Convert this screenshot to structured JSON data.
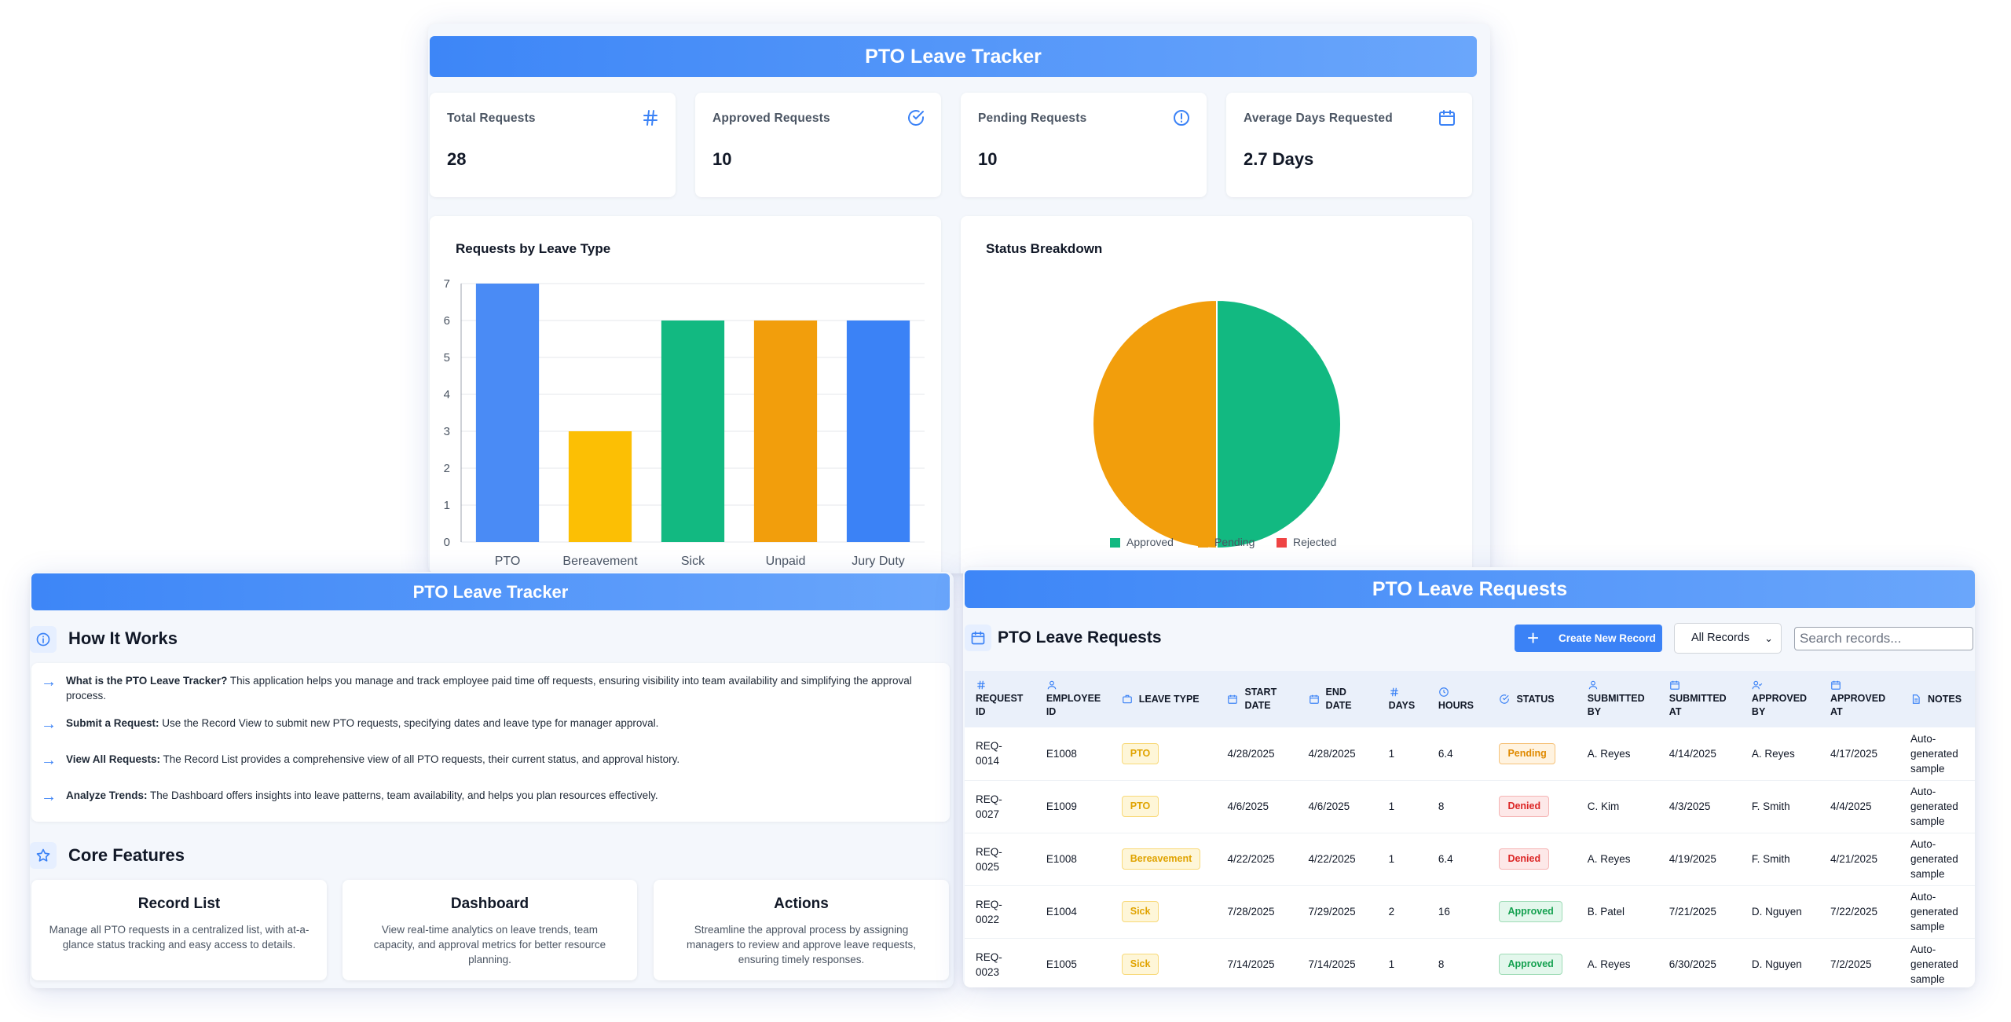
{
  "dashboard": {
    "title": "PTO Leave Tracker",
    "stats": [
      {
        "label": "Total Requests",
        "value": "28",
        "icon": "hash-icon"
      },
      {
        "label": "Approved Requests",
        "value": "10",
        "icon": "check-circle-icon"
      },
      {
        "label": "Pending Requests",
        "value": "10",
        "icon": "alert-circle-icon"
      },
      {
        "label": "Average Days Requested",
        "value": "2.7 Days",
        "icon": "calendar-icon"
      }
    ],
    "bar_title": "Requests by Leave Type",
    "pie_title": "Status Breakdown"
  },
  "chart_data": [
    {
      "type": "bar",
      "title": "Requests by Leave Type",
      "categories": [
        "PTO",
        "Bereavement",
        "Sick",
        "Unpaid",
        "Jury Duty"
      ],
      "values": [
        7,
        3,
        6,
        6,
        6
      ],
      "colors": [
        "#4a8bf5",
        "#fcbf04",
        "#12b981",
        "#f29e0c",
        "#3b82f6"
      ],
      "ylim": [
        0,
        7
      ],
      "yticks": [
        "0",
        "1",
        "2",
        "3",
        "4",
        "5",
        "6",
        "7"
      ],
      "grid": true
    },
    {
      "type": "pie",
      "title": "Status Breakdown",
      "labels": [
        "Approved",
        "Pending",
        "Rejected"
      ],
      "values": [
        10,
        10,
        0
      ],
      "colors": [
        "#12b981",
        "#f29e0c",
        "#ef4444"
      ],
      "legend": "bottom"
    }
  ],
  "how": {
    "title": "PTO Leave Tracker",
    "section_title": "How It Works",
    "items": [
      {
        "bold": "What is the PTO Leave Tracker?",
        "text": " This application helps you manage and track employee paid time off requests, ensuring visibility into team availability and simplifying the approval process."
      },
      {
        "bold": "Submit a Request:",
        "text": " Use the Record View to submit new PTO requests, specifying dates and leave type for manager approval."
      },
      {
        "bold": "View All Requests:",
        "text": " The Record List provides a comprehensive view of all PTO requests, their current status, and approval history."
      },
      {
        "bold": "Analyze Trends:",
        "text": " The Dashboard offers insights into leave patterns, team availability, and helps you plan resources effectively."
      }
    ],
    "features_title": "Core Features",
    "features": [
      {
        "title": "Record List",
        "desc": "Manage all PTO requests in a centralized list, with at-a-glance status tracking and easy access to details."
      },
      {
        "title": "Dashboard",
        "desc": "View real-time analytics on leave trends, team capacity, and approval metrics for better resource planning."
      },
      {
        "title": "Actions",
        "desc": "Streamline the approval process by assigning managers to review and approve leave requests, ensuring timely responses."
      }
    ]
  },
  "requests": {
    "header": "PTO Leave Requests",
    "title": "PTO Leave Requests",
    "new_button": "Create New Record",
    "filter_value": "All Records",
    "search_placeholder": "Search records...",
    "columns": [
      "REQUEST ID",
      "EMPLOYEE ID",
      "LEAVE TYPE",
      "START DATE",
      "END DATE",
      "DAYS",
      "HOURS",
      "STATUS",
      "SUBMITTED BY",
      "SUBMITTED AT",
      "APPROVED BY",
      "APPROVED AT",
      "NOTES"
    ],
    "rows": [
      [
        "REQ-0014",
        "E1008",
        "PTO",
        "4/28/2025",
        "4/28/2025",
        "1",
        "6.4",
        "Pending",
        "A. Reyes",
        "4/14/2025",
        "A. Reyes",
        "4/17/2025",
        "Auto-generated sample"
      ],
      [
        "REQ-0027",
        "E1009",
        "PTO",
        "4/6/2025",
        "4/6/2025",
        "1",
        "8",
        "Denied",
        "C. Kim",
        "4/3/2025",
        "F. Smith",
        "4/4/2025",
        "Auto-generated sample"
      ],
      [
        "REQ-0025",
        "E1008",
        "Bereavement",
        "4/22/2025",
        "4/22/2025",
        "1",
        "6.4",
        "Denied",
        "A. Reyes",
        "4/19/2025",
        "F. Smith",
        "4/21/2025",
        "Auto-generated sample"
      ],
      [
        "REQ-0022",
        "E1004",
        "Sick",
        "7/28/2025",
        "7/29/2025",
        "2",
        "16",
        "Approved",
        "B. Patel",
        "7/21/2025",
        "D. Nguyen",
        "7/22/2025",
        "Auto-generated sample"
      ],
      [
        "REQ-0023",
        "E1005",
        "Sick",
        "7/14/2025",
        "7/14/2025",
        "1",
        "8",
        "Approved",
        "A. Reyes",
        "6/30/2025",
        "D. Nguyen",
        "7/2/2025",
        "Auto-generated sample"
      ]
    ]
  }
}
